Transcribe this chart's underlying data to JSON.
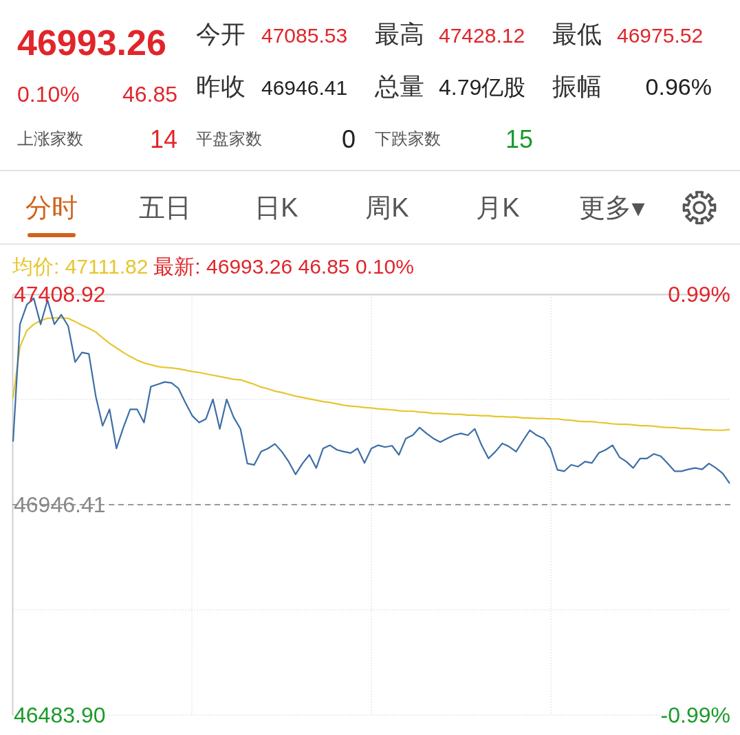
{
  "chart_data": {
    "type": "line",
    "title": "46993.26",
    "annotations": [
      "0.10%",
      "46.85",
      "今开",
      "47085.53",
      "最高",
      "47428.12",
      "最低",
      "46975.52",
      "昨收",
      "46946.41",
      "总量",
      "4.79亿股",
      "振幅",
      "0.96%",
      "上涨家数",
      "14",
      "平盘家数",
      "0",
      "下跌家数",
      "15",
      "分时",
      "五日",
      "日K",
      "周K",
      "月K",
      "更多▾",
      "最新: 46993.26 46.85 0.10%"
    ],
    "categories": [
      null,
      null,
      null,
      null,
      null,
      null,
      null,
      null,
      null,
      null,
      null,
      null,
      null,
      null,
      null,
      null,
      null,
      null,
      null,
      null,
      null,
      null,
      null,
      null,
      null,
      null,
      null,
      null,
      null,
      null,
      null,
      null,
      null,
      null,
      null,
      null,
      null,
      null,
      null,
      null,
      null,
      null,
      null,
      null,
      null,
      null,
      null,
      null,
      null,
      null,
      null,
      null,
      null,
      null,
      null,
      null,
      null,
      null,
      null,
      null,
      null,
      null,
      null,
      null,
      null,
      null,
      null,
      null,
      null,
      null,
      null,
      null,
      null,
      null,
      null,
      null,
      null,
      null,
      null,
      null,
      null,
      null,
      null,
      null,
      null,
      null,
      null,
      null,
      null,
      null,
      null,
      null,
      null,
      null,
      null,
      null,
      null,
      null,
      null,
      null,
      null,
      null,
      null,
      null,
      null
    ],
    "series": [
      {
        "name": "均价: 47111.82",
        "color": "#e6c62e",
        "values": [
          47181,
          47293,
          47329,
          47343,
          47351,
          47356,
          47357,
          47357,
          47356,
          47349,
          47341,
          47334,
          47326,
          47313,
          47301,
          47291,
          47281,
          47272,
          47264,
          47258,
          47254,
          47250,
          47248,
          47247,
          47245,
          47242,
          47239,
          47237,
          47234,
          47231,
          47228,
          47225,
          47222,
          47221,
          47216,
          47211,
          47205,
          47201,
          47196,
          47193,
          47189,
          47185,
          47182,
          47179,
          47176,
          47173,
          47171,
          47168,
          47165,
          47163,
          47162,
          47160,
          47159,
          47157,
          47156,
          47155,
          47153,
          47152,
          47152,
          47150,
          47149,
          47147,
          47147,
          47146,
          47145,
          47145,
          47143,
          47143,
          47142,
          47142,
          47140,
          47140,
          47139,
          47139,
          47137,
          47137,
          47136,
          47136,
          47135,
          47135,
          47133,
          47132,
          47130,
          47129,
          47129,
          47127,
          47126,
          47124,
          47123,
          47123,
          47122,
          47120,
          47120,
          47119,
          47117,
          47116,
          47116,
          47114,
          47114,
          47113,
          47111,
          47111,
          47110,
          47110,
          47111.82
        ]
      },
      {
        "color": "#3d6fa5",
        "values": [
          47085,
          47343,
          47386,
          47400,
          47343,
          47396,
          47343,
          47364,
          47339,
          47260,
          47281,
          47278,
          47185,
          47120,
          47156,
          47070,
          47116,
          47156,
          47156,
          47127,
          47206,
          47211,
          47216,
          47214,
          47202,
          47171,
          47142,
          47127,
          47135,
          47178,
          47113,
          47178,
          47139,
          47113,
          47037,
          47034,
          47063,
          47070,
          47080,
          47063,
          47041,
          47013,
          47037,
          47056,
          47027,
          47070,
          47077,
          47067,
          47063,
          47060,
          47070,
          47038,
          47070,
          47077,
          47073,
          47076,
          47056,
          47092,
          47099,
          47116,
          47103,
          47092,
          47084,
          47092,
          47099,
          47103,
          47099,
          47113,
          47077,
          47048,
          47063,
          47081,
          47074,
          47063,
          47087,
          47110,
          47099,
          47092,
          47070,
          47023,
          47020,
          47034,
          47030,
          47041,
          47038,
          47060,
          47067,
          47077,
          47051,
          47041,
          47027,
          47048,
          47048,
          47058,
          47053,
          47037,
          47020,
          47020,
          47024,
          47027,
          47024,
          47037,
          47027,
          47015,
          46993.26
        ]
      }
    ],
    "ylim": [
      46483.9,
      47408.92
    ],
    "yticks": [
      {
        "value": 46483.9,
        "label": "46483.90"
      },
      {
        "value": 46715.16,
        "label": null
      },
      {
        "value": 46946.41,
        "label": "46946.41"
      },
      {
        "value": 47177.67,
        "label": null
      },
      {
        "value": 47408.92,
        "label": "47408.92"
      }
    ],
    "y2lim": [
      -0.99,
      0.99
    ],
    "y2ticks": [
      {
        "value": -0.99,
        "label": "-0.99%"
      },
      {
        "value": 0.99,
        "label": "0.99%"
      }
    ],
    "ref_lines": [
      {
        "axis": "y",
        "value": 46946.41,
        "color": "#999999",
        "line_style": "dashed"
      }
    ],
    "grid": true,
    "legend": "top left",
    "marker": "none",
    "line_style": "solid"
  }
}
